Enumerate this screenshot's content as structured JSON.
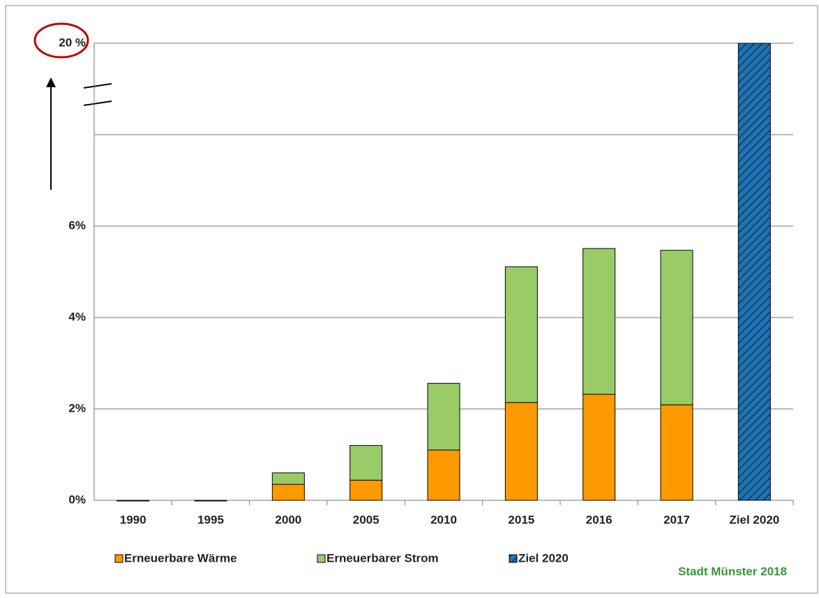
{
  "chart_data": {
    "type": "bar",
    "stacked": true,
    "categories": [
      "1990",
      "1995",
      "2000",
      "2005",
      "2010",
      "2015",
      "2016",
      "2017",
      "Ziel 2020"
    ],
    "series": [
      {
        "name": "Erneuerbare Wärme",
        "color": "#ff9900",
        "values": [
          0,
          0,
          0.35,
          0.44,
          1.1,
          2.14,
          2.32,
          2.09,
          null
        ]
      },
      {
        "name": "Erneuerbarer Strom",
        "color": "#99cc66",
        "values": [
          0,
          0,
          0.25,
          0.76,
          1.46,
          2.97,
          3.19,
          3.38,
          null
        ]
      },
      {
        "name": "Ziel 2020",
        "color": "#1e73b4",
        "hatched": true,
        "values": [
          null,
          null,
          null,
          null,
          null,
          null,
          null,
          null,
          20
        ]
      }
    ],
    "ylim": [
      0,
      20
    ],
    "y_break": [
      8,
      20
    ],
    "yticks": [
      {
        "value": 0,
        "label": "0%"
      },
      {
        "value": 2,
        "label": "2%"
      },
      {
        "value": 4,
        "label": "4%"
      },
      {
        "value": 6,
        "label": "6%"
      },
      {
        "value": 20,
        "label": "20 %"
      }
    ],
    "grid": true,
    "legend": "bottom",
    "source": "Stadt Münster 2018"
  }
}
